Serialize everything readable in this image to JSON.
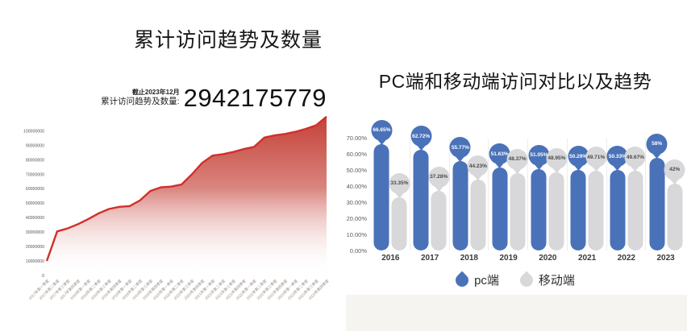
{
  "left": {
    "title": "累计访问趋势及数量",
    "stat_caption": "截止2023年12月",
    "stat_label": "累计访问趋势及数量:",
    "stat_value": "2942175779"
  },
  "right": {
    "title": "PC端和移动端访问对比以及趋势"
  },
  "chart_data": [
    {
      "id": "cumulative-visits-area",
      "type": "area",
      "title": "累计访问趋势及数量",
      "annotation": "截止2023年12月 累计访问趋势及数量: 2942175779",
      "categories": [
        "2017年第一季度",
        "2017年第二季度",
        "2017年第三季度",
        "2017年第四季度",
        "2018年第一季度",
        "2018年第二季度",
        "2018年第三季度",
        "2018年第四季度",
        "2019年第一季度",
        "2019年第二季度",
        "2019年第三季度",
        "2019年第四季度",
        "2020年第一季度",
        "2020年第二季度",
        "2020年第三季度",
        "2020年第四季度",
        "2021年第一季度",
        "2021年第二季度",
        "2021年第三季度",
        "2021年第四季度",
        "2022年第一季度",
        "2022年第二季度",
        "2022年第三季度",
        "2022年第四季度",
        "2023年第一季度",
        "2023年第二季度",
        "2023年第三季度",
        "2023年第四季度"
      ],
      "values": [
        10000000,
        30500000,
        32500000,
        35500000,
        39000000,
        43000000,
        46000000,
        47500000,
        48000000,
        52000000,
        58500000,
        61000000,
        61500000,
        63000000,
        70000000,
        78000000,
        83000000,
        84000000,
        85500000,
        87500000,
        89000000,
        95500000,
        97000000,
        98000000,
        99500000,
        101500000,
        104000000,
        110000000
      ],
      "y_ticks": [
        {
          "label": "100000000",
          "value": 100000000
        },
        {
          "label": "90000000",
          "value": 90000000
        },
        {
          "label": "80000000",
          "value": 80000000
        },
        {
          "label": "70000000",
          "value": 70000000
        },
        {
          "label": "60000000",
          "value": 60000000
        },
        {
          "label": "50000000",
          "value": 50000000
        },
        {
          "label": "40000000",
          "value": 40000000
        },
        {
          "label": "30000000",
          "value": 30000000
        },
        {
          "label": "20000000",
          "value": 20000000
        },
        {
          "label": "10000000",
          "value": 10000000
        },
        {
          "label": "0",
          "value": 0
        }
      ],
      "ylim": [
        0,
        111000000
      ],
      "grid": false,
      "line_color": "#d0302a",
      "fill_top_color": "#c23a30",
      "tick_label_color": "#968b83",
      "axis_label_color": "#555555"
    },
    {
      "id": "pc-vs-mobile-bars",
      "type": "bar",
      "title": "PC端和移动端访问对比以及趋势",
      "categories": [
        "2016",
        "2017",
        "2018",
        "2019",
        "2020",
        "2021",
        "2022",
        "2023"
      ],
      "series": [
        {
          "name": "pc端",
          "color": "#4a72b9",
          "label_text_color": "#ffffff",
          "values": [
            66.65,
            62.72,
            55.77,
            51.63,
            51.05,
            50.29,
            50.33,
            58
          ],
          "labels": [
            "66.65%",
            "62.72%",
            "55.77%",
            "51.63%",
            "51.05%",
            "50.29%",
            "50.33%",
            "58%"
          ]
        },
        {
          "name": "移动端",
          "color": "#d8d7d9",
          "label_text_color": "#4a4a4a",
          "values": [
            33.35,
            37.28,
            44.23,
            48.37,
            48.95,
            49.71,
            49.67,
            42
          ],
          "labels": [
            "33.35%",
            "37.28%",
            "44.23%",
            "48.37%",
            "48.95%",
            "49.71%",
            "49.67%",
            "42%"
          ]
        }
      ],
      "y_ticks": [
        {
          "label": "70.00%",
          "value": 70
        },
        {
          "label": "60.00%",
          "value": 60
        },
        {
          "label": "50.00%",
          "value": 50
        },
        {
          "label": "40.00%",
          "value": 40
        },
        {
          "label": "30.00%",
          "value": 30
        },
        {
          "label": "20.00%",
          "value": 20
        },
        {
          "label": "10.00%",
          "value": 10
        },
        {
          "label": "0.00%",
          "value": 0
        }
      ],
      "ylim": [
        0,
        70
      ],
      "grid": false,
      "legend_position": "bottom"
    }
  ]
}
